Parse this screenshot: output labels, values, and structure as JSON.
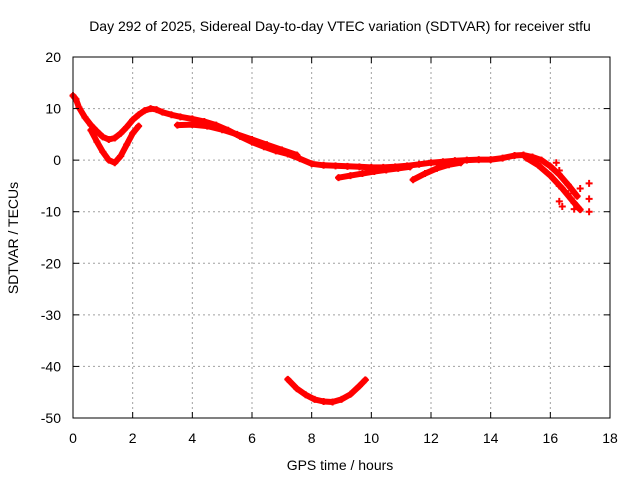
{
  "chart_data": {
    "type": "scatter",
    "title": "Day 292 of 2025, Sidereal Day-to-day VTEC variation (SDTVAR) for receiver stfu",
    "xlabel": "GPS time / hours",
    "ylabel": "SDTVAR / TECUs",
    "xlim": [
      0,
      18
    ],
    "ylim": [
      -50,
      20
    ],
    "xticks": [
      0,
      2,
      4,
      6,
      8,
      10,
      12,
      14,
      16,
      18
    ],
    "yticks": [
      -50,
      -40,
      -30,
      -20,
      -10,
      0,
      10,
      20
    ],
    "grid": true,
    "marker": "plus",
    "series": [
      {
        "name": "main-trace",
        "color": "#ff0000",
        "points": [
          [
            0.0,
            12.5
          ],
          [
            0.1,
            11.8
          ],
          [
            0.2,
            10.2
          ],
          [
            0.4,
            8.3
          ],
          [
            0.6,
            6.8
          ],
          [
            0.8,
            5.6
          ],
          [
            1.0,
            4.5
          ],
          [
            1.2,
            4.0
          ],
          [
            1.4,
            4.3
          ],
          [
            1.6,
            5.2
          ],
          [
            1.8,
            6.4
          ],
          [
            2.0,
            7.8
          ],
          [
            2.2,
            8.8
          ],
          [
            2.4,
            9.6
          ],
          [
            2.6,
            10.0
          ],
          [
            2.8,
            9.8
          ],
          [
            3.0,
            9.3
          ],
          [
            3.3,
            8.8
          ],
          [
            3.6,
            8.4
          ],
          [
            4.0,
            8.0
          ],
          [
            4.4,
            7.5
          ],
          [
            4.8,
            6.8
          ],
          [
            5.2,
            5.8
          ],
          [
            5.6,
            4.6
          ],
          [
            6.0,
            3.5
          ],
          [
            6.4,
            2.6
          ],
          [
            6.8,
            1.8
          ],
          [
            7.2,
            1.2
          ],
          [
            7.6,
            0.3
          ],
          [
            8.0,
            -0.7
          ],
          [
            8.4,
            -1.0
          ],
          [
            8.8,
            -1.1
          ],
          [
            9.2,
            -1.2
          ],
          [
            9.6,
            -1.3
          ],
          [
            10.0,
            -1.4
          ],
          [
            10.4,
            -1.4
          ],
          [
            10.8,
            -1.3
          ],
          [
            11.2,
            -1.1
          ],
          [
            11.6,
            -0.8
          ],
          [
            12.0,
            -0.5
          ],
          [
            12.4,
            -0.3
          ],
          [
            12.8,
            -0.1
          ],
          [
            13.2,
            0.0
          ],
          [
            13.6,
            0.1
          ],
          [
            14.0,
            0.1
          ],
          [
            14.4,
            0.4
          ],
          [
            14.8,
            0.9
          ],
          [
            15.1,
            1.0
          ],
          [
            15.4,
            0.6
          ],
          [
            15.7,
            0.0
          ],
          [
            16.0,
            -1.2
          ],
          [
            16.3,
            -2.8
          ],
          [
            16.6,
            -4.8
          ],
          [
            16.9,
            -7.0
          ]
        ]
      },
      {
        "name": "lower-loop",
        "color": "#ff0000",
        "points": [
          [
            0.6,
            5.8
          ],
          [
            0.8,
            3.6
          ],
          [
            1.0,
            1.6
          ],
          [
            1.2,
            0.0
          ],
          [
            1.4,
            -0.5
          ],
          [
            1.6,
            0.8
          ],
          [
            1.8,
            3.0
          ],
          [
            2.0,
            5.2
          ],
          [
            2.2,
            6.6
          ]
        ]
      },
      {
        "name": "offset-band",
        "color": "#ff0000",
        "points": [
          [
            3.5,
            6.8
          ],
          [
            4.0,
            6.9
          ],
          [
            4.5,
            6.6
          ],
          [
            5.0,
            5.9
          ],
          [
            5.5,
            5.0
          ],
          [
            6.0,
            4.0
          ],
          [
            6.5,
            3.0
          ],
          [
            7.0,
            2.0
          ],
          [
            7.5,
            1.0
          ]
        ]
      },
      {
        "name": "lower-branch",
        "color": "#ff0000",
        "points": [
          [
            8.9,
            -3.4
          ],
          [
            9.3,
            -3.0
          ],
          [
            9.7,
            -2.6
          ],
          [
            10.1,
            -2.2
          ],
          [
            10.5,
            -1.9
          ],
          [
            10.9,
            -1.6
          ],
          [
            11.3,
            -1.3
          ]
        ]
      },
      {
        "name": "lower-branch-2",
        "color": "#ff0000",
        "points": [
          [
            11.4,
            -3.8
          ],
          [
            11.8,
            -2.6
          ],
          [
            12.2,
            -1.6
          ],
          [
            12.6,
            -0.9
          ],
          [
            13.0,
            -0.5
          ]
        ]
      },
      {
        "name": "tail-branch",
        "color": "#ff0000",
        "points": [
          [
            15.2,
            0.4
          ],
          [
            15.6,
            -1.0
          ],
          [
            16.0,
            -3.0
          ],
          [
            16.4,
            -5.5
          ],
          [
            16.8,
            -8.3
          ],
          [
            17.0,
            -9.6
          ]
        ]
      },
      {
        "name": "scattered-tail",
        "color": "#ff0000",
        "points": [
          [
            16.2,
            -0.5
          ],
          [
            16.3,
            -2.0
          ],
          [
            16.3,
            -5.0
          ],
          [
            16.3,
            -8.0
          ],
          [
            16.4,
            -9.0
          ],
          [
            16.6,
            -6.5
          ],
          [
            16.7,
            -7.5
          ],
          [
            16.8,
            -9.5
          ],
          [
            17.0,
            -5.5
          ],
          [
            17.3,
            -4.5
          ],
          [
            17.3,
            -7.5
          ],
          [
            17.3,
            -10.0
          ]
        ]
      },
      {
        "name": "arc",
        "color": "#ff0000",
        "points": [
          [
            7.2,
            -42.5
          ],
          [
            7.5,
            -44.3
          ],
          [
            7.8,
            -45.5
          ],
          [
            8.1,
            -46.4
          ],
          [
            8.4,
            -46.8
          ],
          [
            8.7,
            -46.9
          ],
          [
            9.0,
            -46.4
          ],
          [
            9.3,
            -45.4
          ],
          [
            9.6,
            -43.8
          ],
          [
            9.8,
            -42.6
          ]
        ]
      }
    ]
  }
}
